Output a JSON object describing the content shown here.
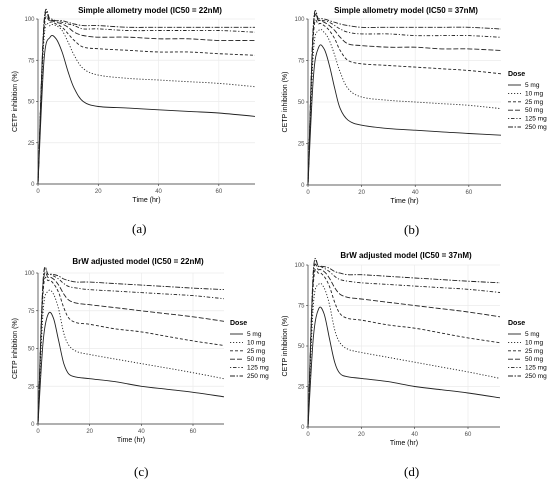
{
  "figure": {
    "dose_legend_title": "Dose",
    "xlabel": "Time (hr)",
    "ylabel": "CETP inhibition (%)",
    "line_color": "#222222",
    "grid_color": "#ebebeb"
  },
  "chart_data": [
    {
      "type": "line",
      "title": "Simple allometry model (IC50 = 22nM)",
      "caption": "(a)",
      "xlabel": "Time (hr)",
      "ylabel": "CETP inhibition (%)",
      "xlim": [
        0,
        72
      ],
      "ylim": [
        0,
        100
      ],
      "xticks": [
        0,
        20,
        40,
        60
      ],
      "yticks": [
        0,
        25,
        50,
        75,
        100
      ],
      "grid": true,
      "legend": {
        "title": "Dose",
        "placement": "none"
      },
      "series": [
        {
          "name": "5 mg",
          "dash": "solid",
          "x": [
            0,
            2,
            4,
            6,
            8,
            10,
            12,
            15,
            20,
            30,
            40,
            50,
            60,
            72
          ],
          "y": [
            0,
            75,
            89,
            88,
            80,
            68,
            58,
            50,
            47,
            46,
            45,
            44,
            43,
            41
          ]
        },
        {
          "name": "10 mg",
          "dash": "dotted",
          "x": [
            0,
            2,
            4,
            6,
            8,
            10,
            12,
            15,
            20,
            30,
            40,
            50,
            60,
            72
          ],
          "y": [
            0,
            88,
            96,
            96,
            93,
            86,
            78,
            70,
            66,
            64,
            63,
            62,
            61,
            59
          ]
        },
        {
          "name": "25 mg",
          "dash": "dashed",
          "x": [
            0,
            2,
            4,
            6,
            8,
            10,
            12,
            15,
            20,
            30,
            40,
            50,
            60,
            72
          ],
          "y": [
            0,
            93,
            98,
            97,
            95,
            91,
            87,
            83,
            82,
            81,
            80,
            80,
            79,
            78
          ]
        },
        {
          "name": "50 mg",
          "dash": "longdash",
          "x": [
            0,
            2,
            4,
            6,
            8,
            10,
            12,
            15,
            20,
            30,
            40,
            50,
            60,
            72
          ],
          "y": [
            0,
            96,
            99,
            98,
            97,
            95,
            92,
            90,
            89,
            89,
            88,
            88,
            87,
            87
          ]
        },
        {
          "name": "125 mg",
          "dash": "dotdash",
          "x": [
            0,
            2,
            4,
            6,
            8,
            10,
            12,
            15,
            20,
            30,
            40,
            50,
            60,
            72
          ],
          "y": [
            0,
            97,
            99,
            99,
            98,
            97,
            96,
            94,
            94,
            93,
            93,
            93,
            93,
            92
          ]
        },
        {
          "name": "250 mg",
          "dash": "twodash",
          "x": [
            0,
            2,
            4,
            6,
            8,
            10,
            12,
            15,
            20,
            30,
            40,
            50,
            60,
            72
          ],
          "y": [
            0,
            98,
            100,
            99,
            99,
            98,
            97,
            96,
            96,
            95,
            95,
            95,
            95,
            95
          ]
        }
      ]
    },
    {
      "type": "line",
      "title": "Simple allometry model (IC50 = 37nM)",
      "caption": "(b)",
      "xlabel": "Time (hr)",
      "ylabel": "CETP inhibition (%)",
      "xlim": [
        0,
        72
      ],
      "ylim": [
        0,
        100
      ],
      "xticks": [
        0,
        20,
        40,
        60
      ],
      "yticks": [
        0,
        25,
        50,
        75,
        100
      ],
      "grid": true,
      "legend": {
        "title": "Dose",
        "placement": "right"
      },
      "series": [
        {
          "name": "5 mg",
          "dash": "solid",
          "x": [
            0,
            2,
            4,
            6,
            8,
            10,
            12,
            15,
            20,
            30,
            40,
            50,
            60,
            72
          ],
          "y": [
            0,
            65,
            83,
            82,
            72,
            58,
            46,
            39,
            36,
            34,
            33,
            32,
            31,
            30
          ]
        },
        {
          "name": "10 mg",
          "dash": "dotted",
          "x": [
            0,
            2,
            4,
            6,
            8,
            10,
            12,
            15,
            20,
            30,
            40,
            50,
            60,
            72
          ],
          "y": [
            0,
            80,
            93,
            92,
            87,
            78,
            68,
            58,
            53,
            51,
            50,
            49,
            48,
            46
          ]
        },
        {
          "name": "25 mg",
          "dash": "dashed",
          "x": [
            0,
            2,
            4,
            6,
            8,
            10,
            12,
            15,
            20,
            30,
            40,
            50,
            60,
            72
          ],
          "y": [
            0,
            90,
            97,
            96,
            93,
            88,
            81,
            75,
            73,
            72,
            71,
            70,
            69,
            67
          ]
        },
        {
          "name": "50 mg",
          "dash": "longdash",
          "x": [
            0,
            2,
            4,
            6,
            8,
            10,
            12,
            15,
            20,
            30,
            40,
            50,
            60,
            72
          ],
          "y": [
            0,
            94,
            99,
            98,
            96,
            93,
            89,
            85,
            84,
            83,
            83,
            82,
            82,
            81
          ]
        },
        {
          "name": "125 mg",
          "dash": "dotdash",
          "x": [
            0,
            2,
            4,
            6,
            8,
            10,
            12,
            15,
            20,
            30,
            40,
            50,
            60,
            72
          ],
          "y": [
            0,
            96,
            99,
            99,
            98,
            96,
            94,
            92,
            91,
            91,
            90,
            90,
            90,
            89
          ]
        },
        {
          "name": "250 mg",
          "dash": "twodash",
          "x": [
            0,
            2,
            4,
            6,
            8,
            10,
            12,
            15,
            20,
            30,
            40,
            50,
            60,
            72
          ],
          "y": [
            0,
            97,
            100,
            100,
            99,
            98,
            97,
            96,
            95,
            95,
            95,
            95,
            95,
            94
          ]
        }
      ]
    },
    {
      "type": "line",
      "title": "BrW adjusted model (IC50 = 22nM)",
      "caption": "(c)",
      "xlabel": "Time (hr)",
      "ylabel": "CETP inhibition (%)",
      "xlim": [
        0,
        72
      ],
      "ylim": [
        0,
        100
      ],
      "xticks": [
        0,
        20,
        40,
        60
      ],
      "yticks": [
        0,
        25,
        50,
        75,
        100
      ],
      "grid": true,
      "legend": {
        "title": "Dose",
        "placement": "right"
      },
      "series": [
        {
          "name": "5 mg",
          "dash": "solid",
          "x": [
            0,
            2,
            4,
            6,
            8,
            10,
            12,
            15,
            20,
            30,
            40,
            50,
            60,
            72
          ],
          "y": [
            0,
            55,
            73,
            70,
            55,
            40,
            33,
            31,
            30,
            28,
            25,
            23,
            21,
            18
          ]
        },
        {
          "name": "10 mg",
          "dash": "dotted",
          "x": [
            0,
            2,
            4,
            6,
            8,
            10,
            12,
            15,
            20,
            30,
            40,
            50,
            60,
            72
          ],
          "y": [
            0,
            75,
            88,
            86,
            76,
            60,
            52,
            48,
            46,
            43,
            40,
            37,
            34,
            30
          ]
        },
        {
          "name": "25 mg",
          "dash": "dashed",
          "x": [
            0,
            2,
            4,
            6,
            8,
            10,
            12,
            15,
            20,
            30,
            40,
            50,
            60,
            72
          ],
          "y": [
            0,
            88,
            95,
            93,
            87,
            77,
            70,
            67,
            66,
            63,
            61,
            58,
            55,
            52
          ]
        },
        {
          "name": "50 mg",
          "dash": "longdash",
          "x": [
            0,
            2,
            4,
            6,
            8,
            10,
            12,
            15,
            20,
            30,
            40,
            50,
            60,
            72
          ],
          "y": [
            0,
            92,
            97,
            96,
            92,
            86,
            82,
            80,
            79,
            77,
            75,
            73,
            71,
            68
          ]
        },
        {
          "name": "125 mg",
          "dash": "dotdash",
          "x": [
            0,
            2,
            4,
            6,
            8,
            10,
            12,
            15,
            20,
            30,
            40,
            50,
            60,
            72
          ],
          "y": [
            0,
            95,
            99,
            98,
            96,
            93,
            91,
            90,
            89,
            88,
            87,
            86,
            85,
            83
          ]
        },
        {
          "name": "250 mg",
          "dash": "twodash",
          "x": [
            0,
            2,
            4,
            6,
            8,
            10,
            12,
            15,
            20,
            30,
            40,
            50,
            60,
            72
          ],
          "y": [
            0,
            96,
            99,
            99,
            98,
            96,
            95,
            94,
            94,
            93,
            92,
            91,
            90,
            89
          ]
        }
      ]
    },
    {
      "type": "line",
      "title": "BrW adjusted model (IC50 = 37nM)",
      "caption": "(d)",
      "xlabel": "Time (hr)",
      "ylabel": "CETP inhibition (%)",
      "xlim": [
        0,
        72
      ],
      "ylim": [
        0,
        100
      ],
      "xticks": [
        0,
        20,
        40,
        60
      ],
      "yticks": [
        0,
        25,
        50,
        75,
        100
      ],
      "grid": true,
      "legend": {
        "title": "Dose",
        "placement": "right"
      },
      "series": [
        {
          "name": "5 mg",
          "dash": "solid",
          "x": [
            0,
            2,
            4,
            6,
            8,
            10,
            12,
            15,
            20,
            30,
            40,
            50,
            60,
            72
          ],
          "y": [
            0,
            55,
            73,
            70,
            55,
            40,
            33,
            31,
            30,
            28,
            25,
            23,
            21,
            18
          ]
        },
        {
          "name": "10 mg",
          "dash": "dotted",
          "x": [
            0,
            2,
            4,
            6,
            8,
            10,
            12,
            15,
            20,
            30,
            40,
            50,
            60,
            72
          ],
          "y": [
            0,
            75,
            88,
            86,
            76,
            60,
            52,
            48,
            46,
            43,
            40,
            37,
            34,
            30
          ]
        },
        {
          "name": "25 mg",
          "dash": "dashed",
          "x": [
            0,
            2,
            4,
            6,
            8,
            10,
            12,
            15,
            20,
            30,
            40,
            50,
            60,
            72
          ],
          "y": [
            0,
            88,
            95,
            93,
            87,
            77,
            70,
            67,
            66,
            63,
            61,
            58,
            55,
            52
          ]
        },
        {
          "name": "50 mg",
          "dash": "longdash",
          "x": [
            0,
            2,
            4,
            6,
            8,
            10,
            12,
            15,
            20,
            30,
            40,
            50,
            60,
            72
          ],
          "y": [
            0,
            92,
            97,
            96,
            92,
            86,
            82,
            80,
            79,
            77,
            75,
            73,
            71,
            68
          ]
        },
        {
          "name": "125 mg",
          "dash": "dotdash",
          "x": [
            0,
            2,
            4,
            6,
            8,
            10,
            12,
            15,
            20,
            30,
            40,
            50,
            60,
            72
          ],
          "y": [
            0,
            95,
            99,
            98,
            96,
            93,
            91,
            90,
            89,
            88,
            87,
            86,
            85,
            83
          ]
        },
        {
          "name": "250 mg",
          "dash": "twodash",
          "x": [
            0,
            2,
            4,
            6,
            8,
            10,
            12,
            15,
            20,
            30,
            40,
            50,
            60,
            72
          ],
          "y": [
            0,
            96,
            99,
            99,
            98,
            96,
            95,
            94,
            94,
            93,
            92,
            91,
            90,
            89
          ]
        }
      ]
    }
  ]
}
